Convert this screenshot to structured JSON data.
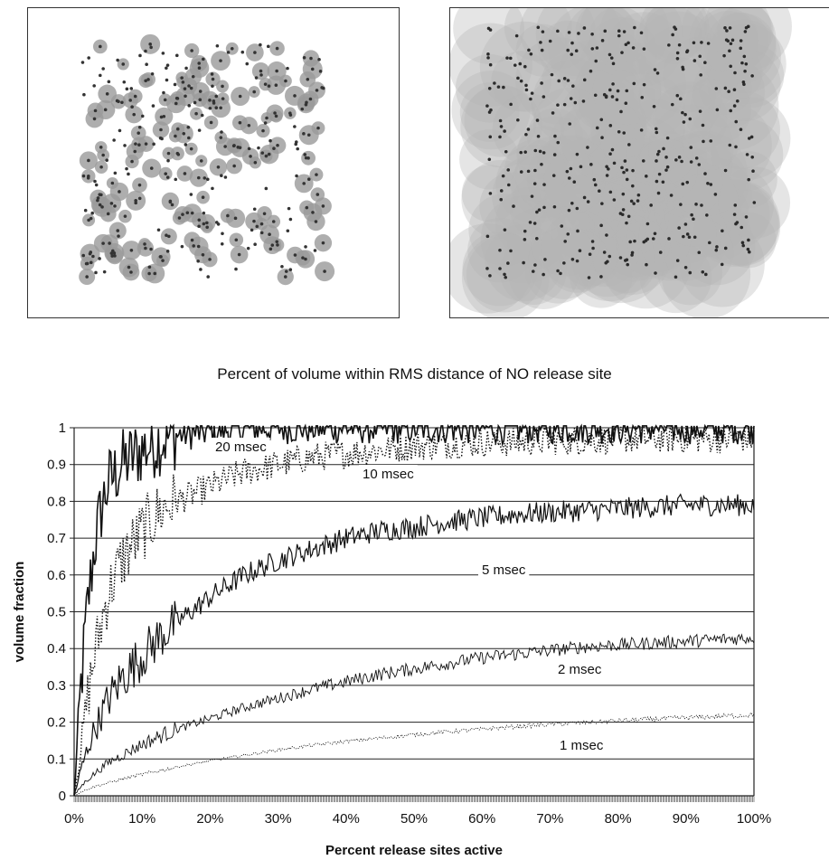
{
  "chart_data": {
    "type": "line",
    "title": "Percent of volume within RMS distance of NO release site",
    "xlabel": "Percent release sites active",
    "ylabel": "volume fraction",
    "xlim": [
      0,
      100
    ],
    "ylim": [
      0,
      1
    ],
    "x_ticks": [
      "0%",
      "10%",
      "20%",
      "30%",
      "40%",
      "50%",
      "60%",
      "70%",
      "80%",
      "90%",
      "100%"
    ],
    "y_ticks": [
      "0",
      "0.1",
      "0.2",
      "0.3",
      "0.4",
      "0.5",
      "0.6",
      "0.7",
      "0.8",
      "0.9",
      "1"
    ],
    "grid": "horizontal",
    "x": [
      0,
      1,
      2,
      3,
      4,
      5,
      7,
      10,
      13,
      15,
      20,
      25,
      30,
      35,
      40,
      45,
      50,
      55,
      60,
      65,
      70,
      75,
      80,
      85,
      90,
      95,
      100
    ],
    "series": [
      {
        "name": "20 msec",
        "style": "solid-heavy",
        "values": [
          0.0,
          0.3,
          0.52,
          0.68,
          0.78,
          0.85,
          0.9,
          0.94,
          0.97,
          0.98,
          0.99,
          1.0,
          1.0,
          1.0,
          1.0,
          1.0,
          1.0,
          1.0,
          1.0,
          1.0,
          1.0,
          1.0,
          1.0,
          1.0,
          1.0,
          1.0,
          1.0
        ]
      },
      {
        "name": "10 msec",
        "style": "dotted",
        "values": [
          0.0,
          0.13,
          0.27,
          0.38,
          0.47,
          0.55,
          0.64,
          0.72,
          0.78,
          0.8,
          0.84,
          0.88,
          0.9,
          0.92,
          0.93,
          0.94,
          0.95,
          0.955,
          0.96,
          0.96,
          0.965,
          0.965,
          0.97,
          0.97,
          0.97,
          0.97,
          0.97
        ]
      },
      {
        "name": "5 msec",
        "style": "solid",
        "values": [
          0.0,
          0.07,
          0.13,
          0.18,
          0.22,
          0.26,
          0.32,
          0.38,
          0.44,
          0.47,
          0.54,
          0.6,
          0.64,
          0.67,
          0.7,
          0.72,
          0.73,
          0.745,
          0.755,
          0.765,
          0.77,
          0.775,
          0.78,
          0.785,
          0.79,
          0.79,
          0.79
        ]
      },
      {
        "name": "2 msec",
        "style": "solid-thin",
        "values": [
          0.0,
          0.025,
          0.045,
          0.06,
          0.075,
          0.09,
          0.11,
          0.14,
          0.165,
          0.18,
          0.21,
          0.24,
          0.265,
          0.29,
          0.31,
          0.33,
          0.345,
          0.36,
          0.375,
          0.385,
          0.395,
          0.405,
          0.41,
          0.415,
          0.42,
          0.425,
          0.43
        ]
      },
      {
        "name": "1 msec",
        "style": "dotted-thin",
        "values": [
          0.0,
          0.01,
          0.018,
          0.025,
          0.03,
          0.035,
          0.045,
          0.058,
          0.07,
          0.078,
          0.095,
          0.11,
          0.125,
          0.137,
          0.148,
          0.157,
          0.166,
          0.174,
          0.181,
          0.188,
          0.194,
          0.199,
          0.204,
          0.208,
          0.212,
          0.216,
          0.22
        ]
      }
    ]
  },
  "panels": {
    "left": {
      "bubble_color": "#9a9a9a",
      "dot_color": "#333333"
    },
    "right": {
      "bubble_color": "#b4b4b4",
      "dot_color": "#2b2b2b"
    }
  }
}
